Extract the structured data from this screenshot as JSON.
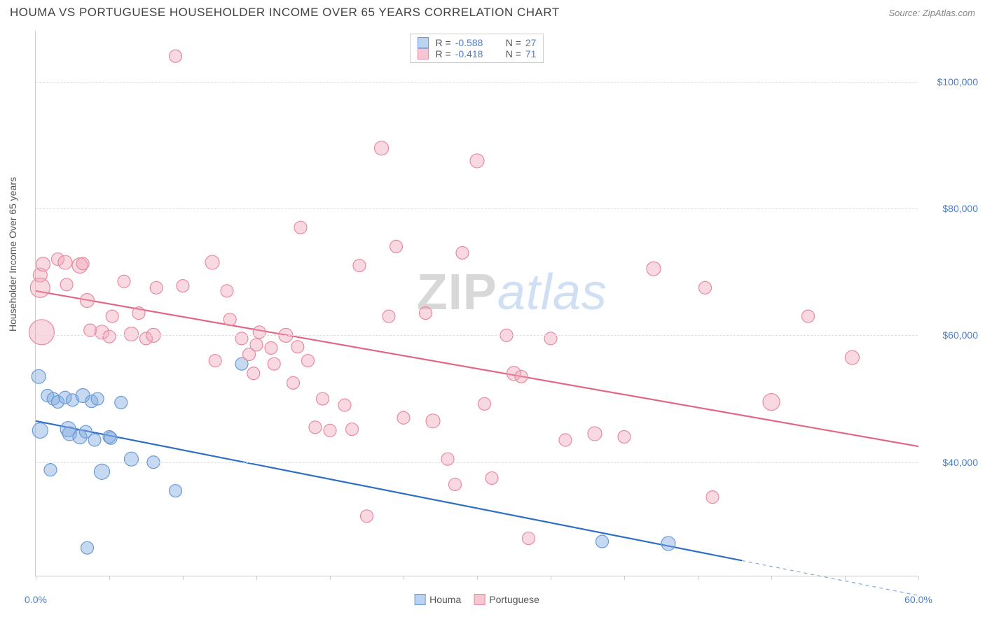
{
  "title": "HOUMA VS PORTUGUESE HOUSEHOLDER INCOME OVER 65 YEARS CORRELATION CHART",
  "source": "Source: ZipAtlas.com",
  "ylabel": "Householder Income Over 65 years",
  "watermark": {
    "part1": "ZIP",
    "part2": "atlas"
  },
  "chart": {
    "type": "scatter",
    "background_color": "#ffffff",
    "grid_color": "#dddddd",
    "axis_color": "#cccccc",
    "label_color": "#555555",
    "value_color": "#4a7ecc",
    "xlim": [
      0,
      60
    ],
    "ylim": [
      22000,
      108000
    ],
    "x_tick_step": 5,
    "x_labels": [
      {
        "v": 0,
        "t": "0.0%"
      },
      {
        "v": 60,
        "t": "60.0%"
      }
    ],
    "y_gridlines": [
      40000,
      60000,
      80000,
      100000
    ],
    "y_labels": [
      {
        "v": 40000,
        "t": "$40,000"
      },
      {
        "v": 60000,
        "t": "$60,000"
      },
      {
        "v": 80000,
        "t": "$80,000"
      },
      {
        "v": 100000,
        "t": "$100,000"
      }
    ],
    "marker_radius": 9,
    "marker_stroke_width": 1.2,
    "trend_width": 2.2,
    "series": [
      {
        "name": "Houma",
        "fill": "rgba(130,170,225,0.45)",
        "stroke": "#6a9ad6",
        "swatch_fill": "#bcd3ef",
        "swatch_border": "#6a9ad6",
        "trend_color": "#2f6fc2",
        "R": "-0.588",
        "N": "27",
        "trend": {
          "x1": 0,
          "y1": 46500,
          "x2": 48,
          "y2": 24500
        },
        "trend_dash": {
          "x1": 48,
          "y1": 24500,
          "x2": 60,
          "y2": 19000
        },
        "points": [
          {
            "x": 0.2,
            "y": 53500,
            "r": 10
          },
          {
            "x": 0.3,
            "y": 45000,
            "r": 11
          },
          {
            "x": 0.8,
            "y": 50500,
            "r": 9
          },
          {
            "x": 1.2,
            "y": 50000,
            "r": 9
          },
          {
            "x": 1.5,
            "y": 49500,
            "r": 9
          },
          {
            "x": 2.0,
            "y": 50200,
            "r": 9
          },
          {
            "x": 2.2,
            "y": 45200,
            "r": 11
          },
          {
            "x": 2.3,
            "y": 44500,
            "r": 10
          },
          {
            "x": 2.5,
            "y": 49800,
            "r": 9
          },
          {
            "x": 3.0,
            "y": 44000,
            "r": 10
          },
          {
            "x": 3.2,
            "y": 50500,
            "r": 10
          },
          {
            "x": 3.4,
            "y": 44800,
            "r": 9
          },
          {
            "x": 3.8,
            "y": 49600,
            "r": 9
          },
          {
            "x": 4.0,
            "y": 43500,
            "r": 9
          },
          {
            "x": 4.2,
            "y": 50000,
            "r": 9
          },
          {
            "x": 4.5,
            "y": 38500,
            "r": 11
          },
          {
            "x": 1.0,
            "y": 38800,
            "r": 9
          },
          {
            "x": 5.0,
            "y": 44000,
            "r": 9
          },
          {
            "x": 5.1,
            "y": 43800,
            "r": 9
          },
          {
            "x": 5.8,
            "y": 49400,
            "r": 9
          },
          {
            "x": 6.5,
            "y": 40500,
            "r": 10
          },
          {
            "x": 8.0,
            "y": 40000,
            "r": 9
          },
          {
            "x": 9.5,
            "y": 35500,
            "r": 9
          },
          {
            "x": 3.5,
            "y": 26500,
            "r": 9
          },
          {
            "x": 14.0,
            "y": 55500,
            "r": 9
          },
          {
            "x": 38.5,
            "y": 27500,
            "r": 9
          },
          {
            "x": 43.0,
            "y": 27200,
            "r": 10
          }
        ]
      },
      {
        "name": "Portuguese",
        "fill": "rgba(240,160,180,0.40)",
        "stroke": "#e68aa2",
        "swatch_fill": "#f6c7d2",
        "swatch_border": "#e68aa2",
        "trend_color": "#e26787",
        "R": "-0.418",
        "N": "71",
        "trend": {
          "x1": 0,
          "y1": 67000,
          "x2": 60,
          "y2": 42500
        },
        "points": [
          {
            "x": 0.3,
            "y": 69500,
            "r": 10
          },
          {
            "x": 0.3,
            "y": 67500,
            "r": 14
          },
          {
            "x": 0.4,
            "y": 60500,
            "r": 18
          },
          {
            "x": 0.5,
            "y": 71200,
            "r": 10
          },
          {
            "x": 1.5,
            "y": 72000,
            "r": 9
          },
          {
            "x": 2.0,
            "y": 71500,
            "r": 10
          },
          {
            "x": 2.1,
            "y": 68000,
            "r": 9
          },
          {
            "x": 3.0,
            "y": 71000,
            "r": 11
          },
          {
            "x": 3.2,
            "y": 71300,
            "r": 9
          },
          {
            "x": 3.5,
            "y": 65500,
            "r": 10
          },
          {
            "x": 3.7,
            "y": 60800,
            "r": 9
          },
          {
            "x": 4.5,
            "y": 60500,
            "r": 10
          },
          {
            "x": 5.0,
            "y": 59800,
            "r": 9
          },
          {
            "x": 5.2,
            "y": 63000,
            "r": 9
          },
          {
            "x": 6.0,
            "y": 68500,
            "r": 9
          },
          {
            "x": 6.5,
            "y": 60200,
            "r": 10
          },
          {
            "x": 7.0,
            "y": 63500,
            "r": 9
          },
          {
            "x": 7.5,
            "y": 59500,
            "r": 9
          },
          {
            "x": 8.0,
            "y": 60000,
            "r": 10
          },
          {
            "x": 8.2,
            "y": 67500,
            "r": 9
          },
          {
            "x": 9.5,
            "y": 104000,
            "r": 9
          },
          {
            "x": 10.0,
            "y": 67800,
            "r": 9
          },
          {
            "x": 12.0,
            "y": 71500,
            "r": 10
          },
          {
            "x": 12.2,
            "y": 56000,
            "r": 9
          },
          {
            "x": 13.0,
            "y": 67000,
            "r": 9
          },
          {
            "x": 13.2,
            "y": 62500,
            "r": 9
          },
          {
            "x": 14.0,
            "y": 59500,
            "r": 9
          },
          {
            "x": 14.5,
            "y": 57000,
            "r": 9
          },
          {
            "x": 14.8,
            "y": 54000,
            "r": 9
          },
          {
            "x": 15.0,
            "y": 58500,
            "r": 9
          },
          {
            "x": 15.2,
            "y": 60500,
            "r": 9
          },
          {
            "x": 16.0,
            "y": 58000,
            "r": 9
          },
          {
            "x": 16.2,
            "y": 55500,
            "r": 9
          },
          {
            "x": 17.0,
            "y": 60000,
            "r": 10
          },
          {
            "x": 17.5,
            "y": 52500,
            "r": 9
          },
          {
            "x": 17.8,
            "y": 58200,
            "r": 9
          },
          {
            "x": 18.0,
            "y": 77000,
            "r": 9
          },
          {
            "x": 18.5,
            "y": 56000,
            "r": 9
          },
          {
            "x": 19.0,
            "y": 45500,
            "r": 9
          },
          {
            "x": 19.5,
            "y": 50000,
            "r": 9
          },
          {
            "x": 20.0,
            "y": 45000,
            "r": 9
          },
          {
            "x": 21.0,
            "y": 49000,
            "r": 9
          },
          {
            "x": 21.5,
            "y": 45200,
            "r": 9
          },
          {
            "x": 22.0,
            "y": 71000,
            "r": 9
          },
          {
            "x": 22.5,
            "y": 31500,
            "r": 9
          },
          {
            "x": 23.5,
            "y": 89500,
            "r": 10
          },
          {
            "x": 24.0,
            "y": 63000,
            "r": 9
          },
          {
            "x": 24.5,
            "y": 74000,
            "r": 9
          },
          {
            "x": 25.0,
            "y": 47000,
            "r": 9
          },
          {
            "x": 26.5,
            "y": 63500,
            "r": 9
          },
          {
            "x": 27.0,
            "y": 46500,
            "r": 10
          },
          {
            "x": 28.0,
            "y": 40500,
            "r": 9
          },
          {
            "x": 28.5,
            "y": 36500,
            "r": 9
          },
          {
            "x": 29.0,
            "y": 73000,
            "r": 9
          },
          {
            "x": 30.0,
            "y": 87500,
            "r": 10
          },
          {
            "x": 30.5,
            "y": 49200,
            "r": 9
          },
          {
            "x": 31.0,
            "y": 37500,
            "r": 9
          },
          {
            "x": 32.0,
            "y": 60000,
            "r": 9
          },
          {
            "x": 32.5,
            "y": 54000,
            "r": 10
          },
          {
            "x": 33.0,
            "y": 53500,
            "r": 9
          },
          {
            "x": 33.5,
            "y": 28000,
            "r": 9
          },
          {
            "x": 35.0,
            "y": 59500,
            "r": 9
          },
          {
            "x": 36.0,
            "y": 43500,
            "r": 9
          },
          {
            "x": 38.0,
            "y": 44500,
            "r": 10
          },
          {
            "x": 40.0,
            "y": 44000,
            "r": 9
          },
          {
            "x": 42.0,
            "y": 70500,
            "r": 10
          },
          {
            "x": 45.5,
            "y": 67500,
            "r": 9
          },
          {
            "x": 46.0,
            "y": 34500,
            "r": 9
          },
          {
            "x": 50.0,
            "y": 49500,
            "r": 12
          },
          {
            "x": 52.5,
            "y": 63000,
            "r": 9
          },
          {
            "x": 55.5,
            "y": 56500,
            "r": 10
          }
        ]
      }
    ]
  },
  "legend_bottom": [
    {
      "label": "Houma",
      "series": 0
    },
    {
      "label": "Portuguese",
      "series": 1
    }
  ]
}
